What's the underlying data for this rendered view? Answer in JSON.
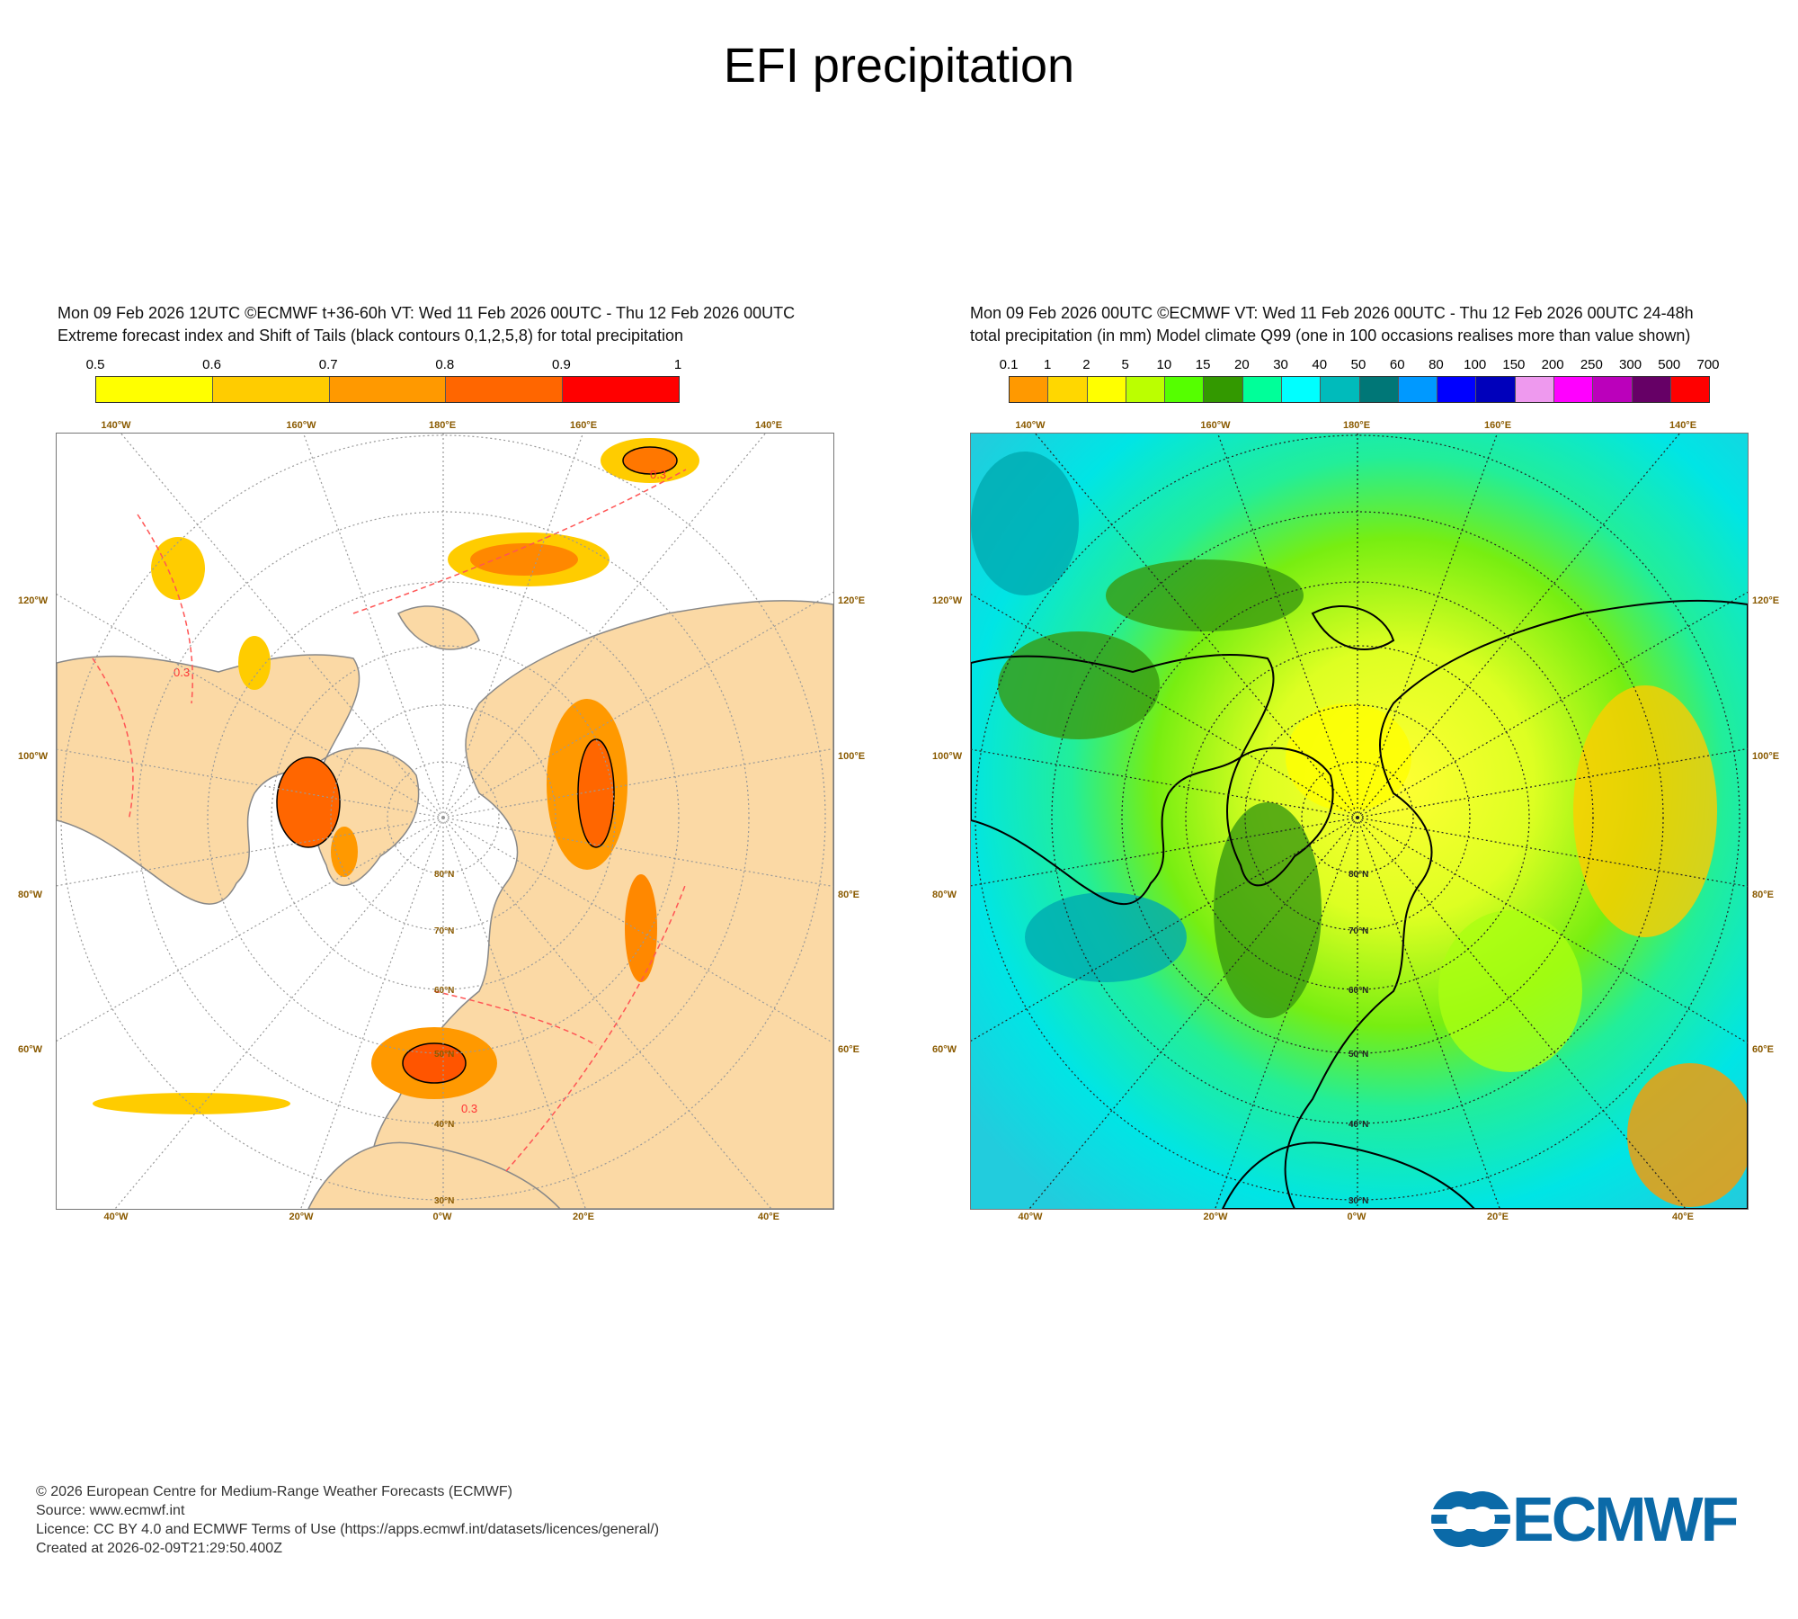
{
  "title": "EFI precipitation",
  "left_panel": {
    "header_line1": "Mon 09 Feb 2026 12UTC ©ECMWF t+36-60h  VT: Wed 11 Feb 2026 00UTC - Thu 12 Feb 2026 00UTC",
    "header_line2": "Extreme forecast index and Shift of Tails (black contours 0,1,2,5,8) for total precipitation",
    "colorbar": {
      "labels": [
        "0.5",
        "0.6",
        "0.7",
        "0.8",
        "0.9",
        "1"
      ],
      "colors": [
        "#ffff00",
        "#ffcc00",
        "#ff9900",
        "#ff6600",
        "#ff0000"
      ]
    },
    "contour_label": "0.3"
  },
  "right_panel": {
    "header_line1": "Mon 09 Feb 2026 00UTC ©ECMWF VT: Wed 11 Feb 2026 00UTC - Thu 12 Feb 2026 00UTC   24-48h",
    "header_line2": "total precipitation (in mm)  Model climate Q99 (one in 100 occasions realises more than value shown)",
    "colorbar": {
      "labels": [
        "0.1",
        "1",
        "2",
        "5",
        "10",
        "15",
        "20",
        "30",
        "40",
        "50",
        "60",
        "80",
        "100",
        "150",
        "200",
        "250",
        "300",
        "500",
        "700"
      ],
      "colors": [
        "#ff9900",
        "#ffd700",
        "#ffff00",
        "#bbff00",
        "#55ff00",
        "#339900",
        "#00ff99",
        "#00ffff",
        "#00bbbb",
        "#007777",
        "#0099ff",
        "#0000ff",
        "#0000bb",
        "#ee99ee",
        "#ff00ff",
        "#bb00bb",
        "#660066",
        "#ff0000"
      ]
    }
  },
  "map_axes": {
    "top": [
      "140°W",
      "160°W",
      "180°E",
      "160°E",
      "140°E"
    ],
    "bottom": [
      "40°W",
      "20°W",
      "0°W",
      "20°E",
      "40°E"
    ],
    "left": [
      "120°W",
      "100°W",
      "80°W",
      "60°W"
    ],
    "right": [
      "120°E",
      "100°E",
      "80°E",
      "60°E"
    ],
    "lat": [
      "80°N",
      "70°N",
      "60°N",
      "50°N",
      "40°N",
      "30°N"
    ]
  },
  "footer": {
    "line1": "© 2026 European Centre for Medium-Range Weather Forecasts (ECMWF)",
    "line2": "Source: www.ecmwf.int",
    "line3": "Licence: CC BY 4.0 and ECMWF Terms of Use (https://apps.ecmwf.int/datasets/licences/general/)",
    "line4": "Created at 2026-02-09T21:29:50.400Z"
  },
  "logo": {
    "text": "ECMWF",
    "color": "#0b6aa8"
  }
}
